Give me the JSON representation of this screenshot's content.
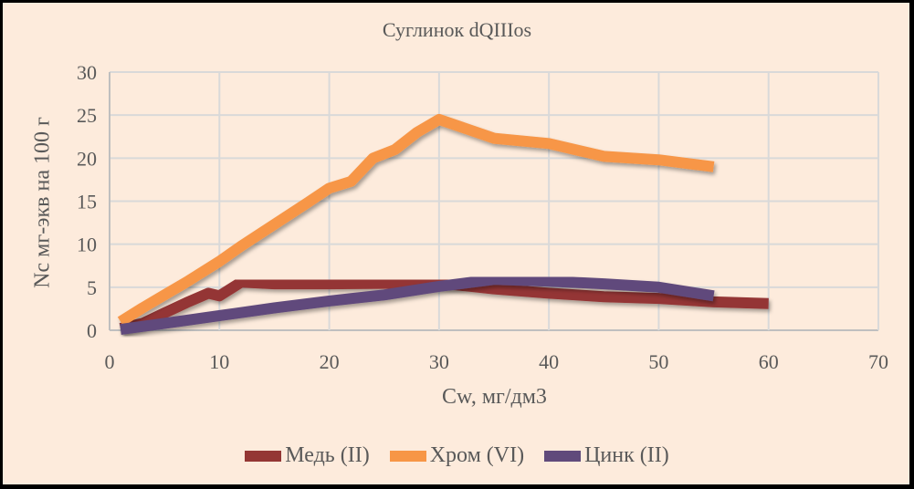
{
  "chart_data": {
    "type": "line",
    "title": "Суглинок dQIIIos",
    "xlabel": "Cw, мг/дм3",
    "ylabel": "Nc мг-экв на 100 г",
    "xlim": [
      0,
      70
    ],
    "ylim": [
      0,
      30
    ],
    "xticks": [
      0,
      10,
      20,
      30,
      40,
      50,
      60,
      70
    ],
    "yticks": [
      0,
      5,
      10,
      15,
      20,
      25,
      30
    ],
    "grid": true,
    "legend_position": "bottom",
    "series": [
      {
        "name": "Медь (II)",
        "color": "#943634",
        "x": [
          1,
          3,
          5,
          7,
          9,
          10,
          12,
          15,
          20,
          25,
          30,
          35,
          40,
          45,
          50,
          55,
          60
        ],
        "y": [
          0.2,
          0.8,
          2.0,
          3.2,
          4.3,
          4.0,
          5.6,
          5.4,
          5.4,
          5.45,
          5.5,
          4.8,
          4.3,
          3.9,
          3.7,
          3.3,
          3.1
        ]
      },
      {
        "name": "Хром (VI)",
        "color": "#f79646",
        "x": [
          1,
          3,
          5,
          7,
          10,
          12,
          15,
          18,
          20,
          22,
          24,
          26,
          28,
          30,
          35,
          40,
          45,
          50,
          55
        ],
        "y": [
          1.0,
          2.6,
          4.1,
          5.6,
          8.0,
          9.8,
          12.3,
          14.8,
          16.5,
          17.3,
          20.0,
          21.0,
          23.0,
          24.5,
          22.3,
          21.7,
          20.2,
          19.8,
          19.0
        ]
      },
      {
        "name": "Цинк (II)",
        "color": "#604a7b",
        "x": [
          1,
          5,
          10,
          15,
          20,
          25,
          30,
          35,
          40,
          45,
          50,
          55
        ],
        "y": [
          0.1,
          0.8,
          1.7,
          2.6,
          3.4,
          4.1,
          5.1,
          5.9,
          5.7,
          5.4,
          5.0,
          4.0
        ]
      }
    ]
  },
  "labels": {
    "title": "Суглинок dQIIIos",
    "xlabel": "Cw, мг/дм3",
    "ylabel": "Nc мг-экв на 100 г",
    "legend": [
      "Медь (II)",
      "Хром (VI)",
      "Цинк (II)"
    ]
  }
}
